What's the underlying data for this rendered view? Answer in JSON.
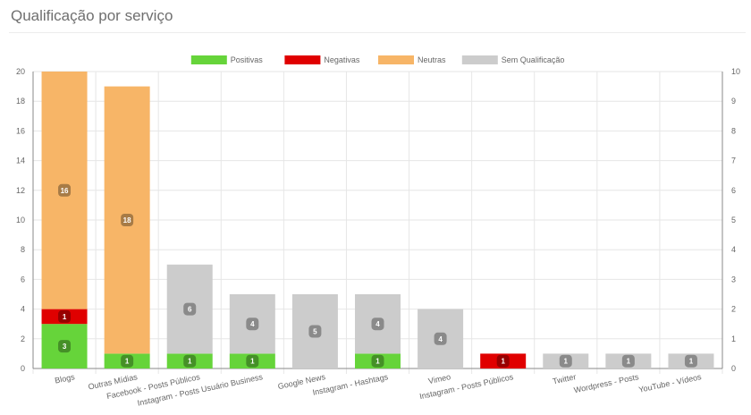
{
  "panel": {
    "title": "Qualificação por serviço"
  },
  "chart_data": {
    "type": "bar",
    "stacked": true,
    "title": "",
    "xlabel": "",
    "ylabel": "",
    "ylim": [
      0,
      20
    ],
    "y_ticks": [
      0,
      2,
      4,
      6,
      8,
      10,
      12,
      14,
      16,
      18,
      20
    ],
    "y2lim": [
      0,
      10
    ],
    "y2_ticks": [
      0,
      1,
      2,
      3,
      4,
      5,
      6,
      7,
      8,
      9,
      10
    ],
    "grid": true,
    "legend_position": "top",
    "categories": [
      "Blogs",
      "Outras Mídias",
      "Facebook - Posts Públicos",
      "Instagram - Posts Usuário Business",
      "Google News",
      "Instagram - Hashtags",
      "Vimeo",
      "Instagram - Posts Públicos",
      "Twitter",
      "Wordpress - Posts",
      "YouTube - Vídeos"
    ],
    "series": [
      {
        "name": "Positivas",
        "color": "#66d43a",
        "values": [
          3,
          1,
          1,
          1,
          0,
          1,
          0,
          0,
          0,
          0,
          0
        ]
      },
      {
        "name": "Negativas",
        "color": "#e00000",
        "values": [
          1,
          0,
          0,
          0,
          0,
          0,
          0,
          1,
          0,
          0,
          0
        ]
      },
      {
        "name": "Neutras",
        "color": "#f7b567",
        "values": [
          16,
          18,
          0,
          0,
          0,
          0,
          0,
          0,
          0,
          0,
          0
        ]
      },
      {
        "name": "Sem Qualificação",
        "color": "#cccccc",
        "values": [
          0,
          0,
          6,
          4,
          5,
          4,
          4,
          0,
          1,
          1,
          1
        ]
      }
    ]
  }
}
